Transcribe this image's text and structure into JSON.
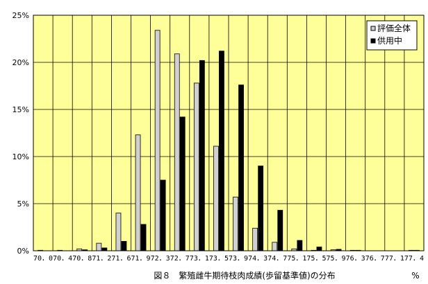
{
  "colors": {
    "plot_background": "#ffff99",
    "gridline": "#000000",
    "series_1_fill": "#d0d0d0",
    "series_2_fill": "#000000"
  },
  "chart_data": {
    "type": "bar",
    "title": "",
    "caption": "図８　繁殖雌牛期待枝肉成績(歩留基準値)の分布",
    "xlabel": "",
    "x_unit": "%",
    "ylabel": "",
    "ylim": [
      0,
      25
    ],
    "y_ticks": [
      "0%",
      "5%",
      "10%",
      "15%",
      "20%",
      "25%"
    ],
    "grid": true,
    "legend_position": "top-right",
    "categories": [
      "70.0",
      "70.4",
      "70.8",
      "71.2",
      "71.6",
      "71.9",
      "72.3",
      "72.7",
      "73.1",
      "73.5",
      "73.9",
      "74.3",
      "74.7",
      "75.1",
      "75.5",
      "75.9",
      "76.3",
      "76.7",
      "77.1",
      "77.4"
    ],
    "category_labels": [
      "70．0",
      "70．4",
      "70．8",
      "71．2",
      "71．6",
      "71．9",
      "72．3",
      "72．7",
      "73．1",
      "73．5",
      "73．9",
      "74．3",
      "74．7",
      "75．1",
      "75．5",
      "75．9",
      "76．3",
      "76．7",
      "77．1",
      "77．4"
    ],
    "series": [
      {
        "name": "評価全体",
        "values": [
          0.05,
          0.05,
          0.2,
          0.8,
          4.0,
          12.3,
          23.4,
          20.9,
          17.8,
          11.1,
          5.7,
          2.4,
          0.9,
          0.2,
          0.05,
          0.1,
          0.05,
          0,
          0,
          0.05
        ]
      },
      {
        "name": "供用中",
        "values": [
          0,
          0,
          0.1,
          0.3,
          1.0,
          2.8,
          7.5,
          14.2,
          20.2,
          21.2,
          17.6,
          9.0,
          4.3,
          1.1,
          0.4,
          0.15,
          0.05,
          0,
          0,
          0.05
        ]
      }
    ]
  }
}
